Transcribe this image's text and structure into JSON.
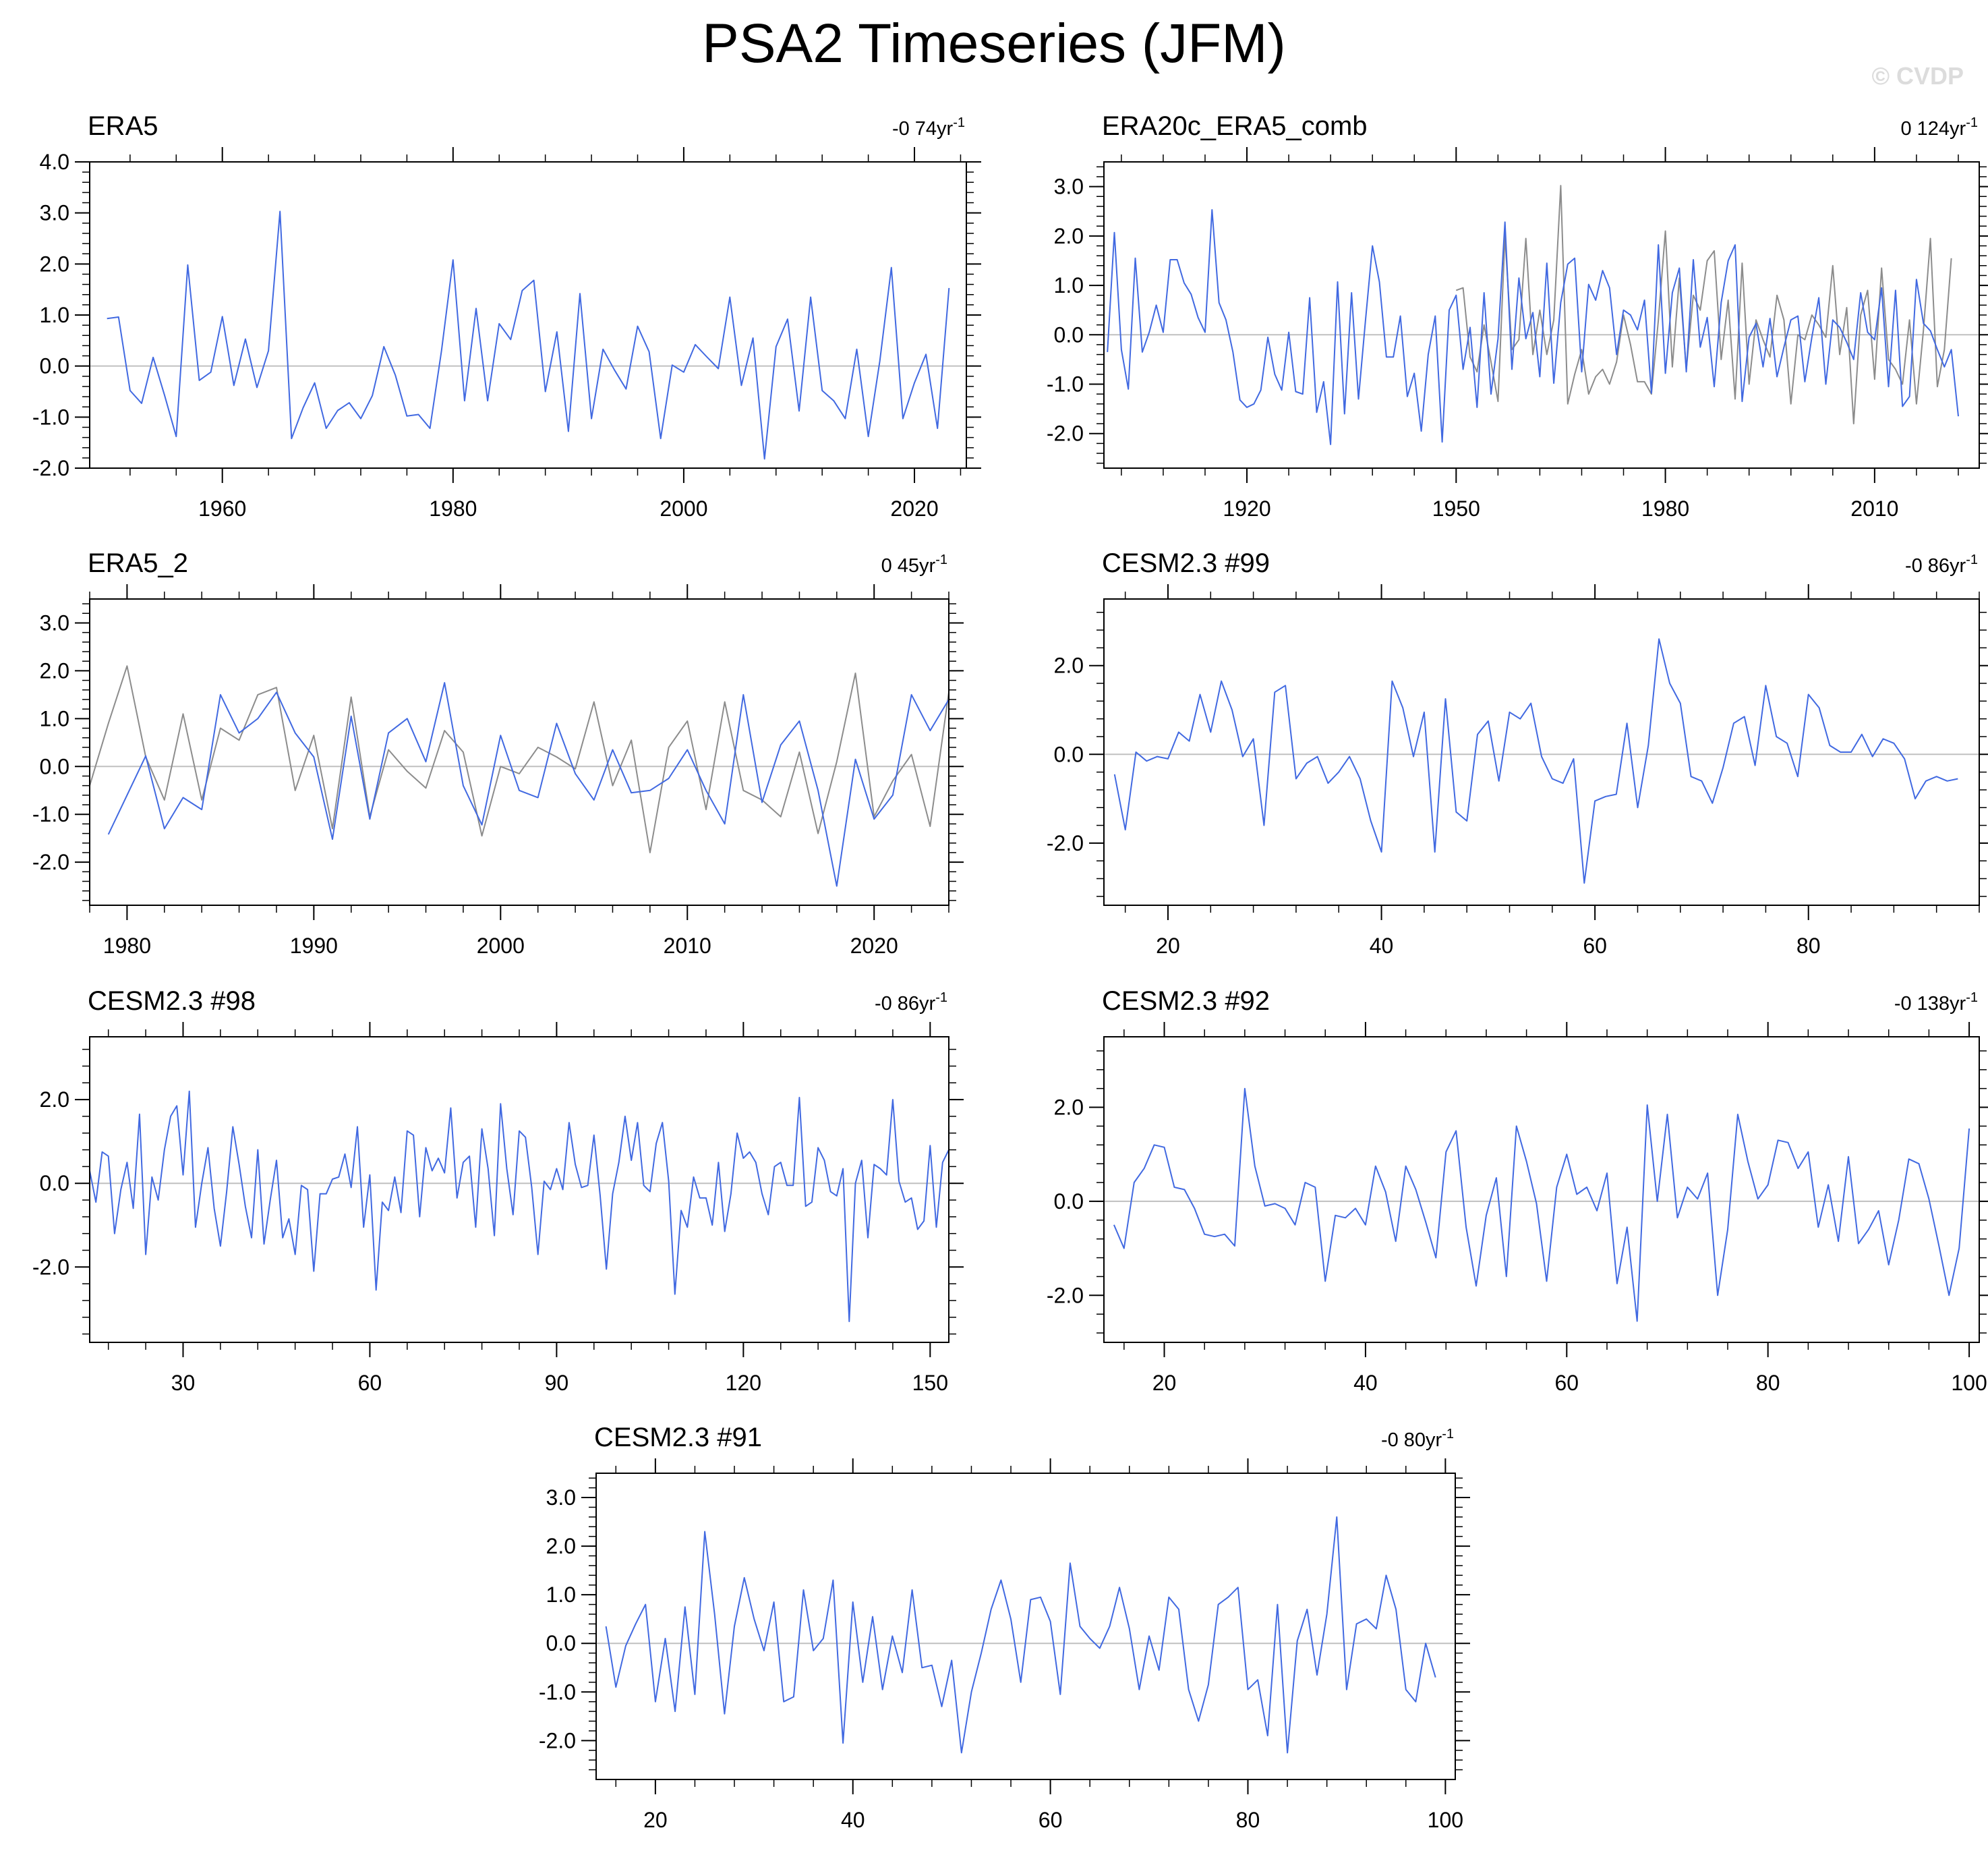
{
  "title": "PSA2 Timeseries (JFM)",
  "watermark": "© CVDP",
  "colors": {
    "primary": "#4169e1",
    "secondary": "#8c8c8c",
    "zero_line": "#c0c0c0",
    "frame": "#000000"
  },
  "chart_data": [
    {
      "type": "line",
      "panel_title": "ERA5",
      "trend": {
        "value": "-0 74yr",
        "exponent": "-1"
      },
      "xlim": [
        1948.5,
        2024.5
      ],
      "ylim": [
        -2.0,
        4.0
      ],
      "xticks": [
        1960,
        1980,
        2000,
        2020
      ],
      "xtick_labels": [
        "1960",
        "1980",
        "2000",
        "2020"
      ],
      "yticks": [
        -2,
        -1,
        0,
        1,
        2,
        3,
        4
      ],
      "ytick_labels": [
        "-2.0",
        "-1.0",
        "0.0",
        "1.0",
        "2.0",
        "3.0",
        "4.0"
      ],
      "series": [
        {
          "x0": 1950,
          "dx": 1,
          "values": [
            0.93,
            0.96,
            -0.48,
            -0.73,
            0.17,
            -0.58,
            -1.38,
            1.98,
            -0.28,
            -0.12,
            0.97,
            -0.38,
            0.53,
            -0.42,
            0.3,
            3.03,
            -1.42,
            -0.82,
            -0.33,
            -1.22,
            -0.87,
            -0.72,
            -1.03,
            -0.58,
            0.38,
            -0.18,
            -0.98,
            -0.95,
            -1.22,
            0.3,
            2.08,
            -0.68,
            1.13,
            -0.68,
            0.83,
            0.52,
            1.48,
            1.68,
            -0.5,
            0.67,
            -1.28,
            1.42,
            -1.03,
            0.33,
            -0.08,
            -0.45,
            0.78,
            0.28,
            -1.42,
            0.02,
            -0.12,
            0.42,
            0.18,
            -0.05,
            1.35,
            -0.38,
            0.55,
            -1.82,
            0.38,
            0.92,
            -0.88,
            1.35,
            -0.48,
            -0.68,
            -1.03,
            0.33,
            -1.38,
            0.1,
            1.93,
            -1.03,
            -0.33,
            0.23,
            -1.22,
            1.53
          ]
        }
      ]
    },
    {
      "type": "line",
      "panel_title": "ERA20c_ERA5_comb",
      "trend": {
        "value": "0 124yr",
        "exponent": "-1"
      },
      "xlim": [
        1899.5,
        2025
      ],
      "ylim": [
        -2.7,
        3.5
      ],
      "xticks": [
        1920,
        1950,
        1980,
        2010
      ],
      "xtick_labels": [
        "1920",
        "1950",
        "1980",
        "2010"
      ],
      "yticks": [
        -2,
        -1,
        0,
        1,
        2,
        3
      ],
      "ytick_labels": [
        "-2.0",
        "-1.0",
        "0.0",
        "1.0",
        "2.0",
        "3.0"
      ],
      "series": [
        {
          "x0": 1900,
          "dx": 1,
          "values": [
            -0.35,
            2.07,
            -0.3,
            -1.1,
            1.55,
            -0.35,
            0.05,
            0.6,
            0.05,
            1.52,
            1.52,
            1.05,
            0.82,
            0.35,
            0.05,
            2.53,
            0.65,
            0.3,
            -0.35,
            -1.32,
            -1.47,
            -1.4,
            -1.12,
            -0.05,
            -0.8,
            -1.12,
            0.05,
            -1.15,
            -1.2,
            0.75,
            -1.57,
            -0.95,
            -2.22,
            1.07,
            -1.6,
            0.85,
            -1.3,
            0.28,
            1.8,
            1.07,
            -0.45,
            -0.45,
            0.38,
            -1.25,
            -0.78,
            -1.95,
            -0.4,
            0.38,
            -2.17,
            0.5,
            0.8,
            -0.7,
            0.15,
            -1.47,
            0.85,
            -1.2,
            -0.08,
            2.28,
            -0.7,
            1.15,
            -0.08,
            0.45,
            -0.85,
            1.45,
            -0.98,
            0.65,
            1.43,
            1.55,
            -0.75,
            1.02,
            0.7,
            1.3,
            0.95,
            -0.4,
            0.5,
            0.4,
            0.1,
            0.7,
            -1.18,
            1.82,
            -0.78,
            0.85,
            1.35,
            -0.75,
            1.52,
            -0.25,
            0.35,
            -1.05,
            0.65,
            1.5,
            1.82,
            -1.35,
            -0.05,
            0.23,
            -0.65,
            0.33,
            -0.85,
            -0.25,
            0.3,
            0.38,
            -0.95,
            -0.05,
            0.75,
            -1.0,
            0.3,
            0.15,
            -0.15,
            -0.5,
            0.85,
            0.05,
            -0.1,
            0.95,
            -1.05,
            0.9,
            -1.45,
            -1.25,
            1.12,
            0.23,
            0.08,
            -0.3,
            -0.65,
            -0.3,
            -1.65
          ]
        },
        {
          "x0": 1950,
          "dx": 1,
          "values": [
            0.9,
            0.95,
            -0.45,
            -0.75,
            0.2,
            -0.55,
            -1.35,
            2.0,
            -0.3,
            -0.1,
            1.95,
            -0.4,
            0.5,
            -0.4,
            0.3,
            3.02,
            -1.4,
            -0.8,
            -0.3,
            -1.2,
            -0.85,
            -0.7,
            -1.0,
            -0.55,
            0.4,
            -0.2,
            -0.95,
            -0.95,
            -1.2,
            0.3,
            2.1,
            -0.65,
            1.15,
            -0.7,
            0.8,
            0.5,
            1.5,
            1.7,
            -0.5,
            0.7,
            -1.3,
            1.45,
            -1.0,
            0.3,
            -0.1,
            -0.45,
            0.8,
            0.3,
            -1.4,
            0.0,
            -0.1,
            0.4,
            0.2,
            -0.05,
            1.4,
            -0.4,
            0.55,
            -1.8,
            0.4,
            0.9,
            -0.9,
            1.35,
            -0.5,
            -0.7,
            -1.0,
            0.3,
            -1.4,
            0.1,
            1.95,
            -1.05,
            -0.3,
            1.55
          ]
        }
      ]
    },
    {
      "type": "line",
      "panel_title": "ERA5_2",
      "trend": {
        "value": "0 45yr",
        "exponent": "-1"
      },
      "xlim": [
        1978,
        2024
      ],
      "ylim": [
        -2.9,
        3.5
      ],
      "xticks": [
        1980,
        1990,
        2000,
        2010,
        2020
      ],
      "xtick_labels": [
        "1980",
        "1990",
        "2000",
        "2010",
        "2020"
      ],
      "yticks": [
        -2,
        -1,
        0,
        1,
        2,
        3
      ],
      "ytick_labels": [
        "-2.0",
        "-1.0",
        "0.0",
        "1.0",
        "2.0",
        "3.0"
      ],
      "series": [
        {
          "x0": 1979,
          "dx": 1,
          "values": [
            -1.42,
            -0.6,
            0.22,
            -1.3,
            -0.65,
            -0.9,
            1.5,
            0.7,
            1.0,
            1.55,
            0.7,
            0.2,
            -1.52,
            1.05,
            -1.1,
            0.7,
            1.0,
            0.1,
            1.75,
            -0.4,
            -1.22,
            0.65,
            -0.5,
            -0.65,
            0.9,
            -0.15,
            -0.7,
            0.35,
            -0.55,
            -0.5,
            -0.25,
            0.35,
            -0.5,
            -1.2,
            1.5,
            -0.75,
            0.45,
            0.95,
            -0.5,
            -2.5,
            0.15,
            -1.1,
            -0.6,
            1.5,
            0.75,
            1.4
          ]
        },
        {
          "x0": 1978,
          "dx": 1,
          "values": [
            -0.4,
            0.9,
            2.1,
            0.2,
            -0.7,
            1.1,
            -0.7,
            0.8,
            0.55,
            1.5,
            1.65,
            -0.5,
            0.65,
            -1.3,
            1.45,
            -1.05,
            0.35,
            -0.1,
            -0.45,
            0.75,
            0.3,
            -1.45,
            0.0,
            -0.15,
            0.4,
            0.2,
            -0.05,
            1.35,
            -0.4,
            0.55,
            -1.8,
            0.4,
            0.95,
            -0.9,
            1.35,
            -0.5,
            -0.7,
            -1.05,
            0.3,
            -1.4,
            0.1,
            1.95,
            -1.05,
            -0.3,
            0.25,
            -1.25,
            1.55
          ]
        }
      ]
    },
    {
      "type": "line",
      "panel_title": "CESM2.3 #99",
      "trend": {
        "value": "-0 86yr",
        "exponent": "-1"
      },
      "xlim": [
        14,
        96
      ],
      "ylim": [
        -3.4,
        3.5
      ],
      "xticks": [
        20,
        40,
        60,
        80
      ],
      "xtick_labels": [
        "20",
        "40",
        "60",
        "80"
      ],
      "yticks": [
        -2,
        0,
        2
      ],
      "ytick_labels": [
        "-2.0",
        "0.0",
        "2.0"
      ],
      "series": [
        {
          "x0": 15,
          "dx": 1,
          "values": [
            -0.45,
            -1.7,
            0.05,
            -0.15,
            -0.05,
            -0.1,
            0.5,
            0.3,
            1.35,
            0.5,
            1.65,
            1.0,
            -0.05,
            0.35,
            -1.6,
            1.4,
            1.55,
            -0.55,
            -0.2,
            -0.05,
            -0.65,
            -0.4,
            -0.05,
            -0.55,
            -1.5,
            -2.2,
            1.65,
            1.05,
            -0.05,
            0.95,
            -2.2,
            1.25,
            -1.3,
            -1.5,
            0.45,
            0.75,
            -0.6,
            0.95,
            0.8,
            1.15,
            -0.05,
            -0.55,
            -0.65,
            -0.1,
            -2.9,
            -1.05,
            -0.95,
            -0.9,
            0.7,
            -1.2,
            0.2,
            2.6,
            1.6,
            1.15,
            -0.5,
            -0.6,
            -1.1,
            -0.3,
            0.7,
            0.85,
            -0.25,
            1.55,
            0.4,
            0.25,
            -0.5,
            1.35,
            1.05,
            0.2,
            0.05,
            0.05,
            0.45,
            -0.05,
            0.35,
            0.25,
            -0.1,
            -1.0,
            -0.6,
            -0.5,
            -0.6,
            -0.55
          ]
        }
      ]
    },
    {
      "type": "line",
      "panel_title": "CESM2.3 #98",
      "trend": {
        "value": "-0 86yr",
        "exponent": "-1"
      },
      "xlim": [
        15,
        153
      ],
      "ylim": [
        -3.8,
        3.5
      ],
      "xticks": [
        30,
        60,
        90,
        120,
        150
      ],
      "xtick_labels": [
        "30",
        "60",
        "90",
        "120",
        "150"
      ],
      "yticks": [
        -2,
        0,
        2
      ],
      "ytick_labels": [
        "-2.0",
        "0.0",
        "2.0"
      ],
      "series": [
        {
          "x0": 15,
          "dx": 1,
          "values": [
            0.3,
            -0.45,
            0.75,
            0.65,
            -1.2,
            -0.15,
            0.5,
            -0.6,
            1.65,
            -1.7,
            0.15,
            -0.4,
            0.8,
            1.6,
            1.85,
            0.2,
            2.2,
            -1.05,
            0.0,
            0.85,
            -0.6,
            -1.5,
            -0.2,
            1.35,
            0.45,
            -0.55,
            -1.3,
            0.8,
            -1.45,
            -0.4,
            0.55,
            -1.3,
            -0.85,
            -1.7,
            -0.05,
            -0.15,
            -2.1,
            -0.25,
            -0.25,
            0.1,
            0.15,
            0.7,
            -0.1,
            1.35,
            -1.05,
            0.2,
            -2.55,
            -0.45,
            -0.65,
            0.15,
            -0.7,
            1.25,
            1.15,
            -0.8,
            0.85,
            0.3,
            0.6,
            0.25,
            1.8,
            -0.35,
            0.5,
            0.65,
            -1.05,
            1.3,
            0.35,
            -1.25,
            1.9,
            0.35,
            -0.75,
            1.25,
            1.1,
            -0.1,
            -1.7,
            0.05,
            -0.15,
            0.35,
            -0.15,
            1.45,
            0.45,
            -0.1,
            -0.05,
            1.15,
            -0.3,
            -2.05,
            -0.25,
            0.5,
            1.6,
            0.55,
            1.45,
            -0.05,
            -0.2,
            0.95,
            1.45,
            0.05,
            -2.65,
            -0.65,
            -1.05,
            0.15,
            -0.35,
            -0.35,
            -1.0,
            0.5,
            -1.15,
            -0.25,
            1.2,
            0.6,
            0.75,
            0.5,
            -0.25,
            -0.75,
            0.4,
            0.5,
            -0.05,
            -0.05,
            2.05,
            -0.55,
            -0.45,
            0.85,
            0.55,
            -0.2,
            -0.3,
            0.35,
            -3.3,
            0.0,
            0.55,
            -1.3,
            0.45,
            0.35,
            0.2,
            2.0,
            0.05,
            -0.45,
            -0.35,
            -1.1,
            -0.9,
            0.9,
            -1.05,
            0.5,
            0.8,
            -0.2,
            -0.7
          ]
        }
      ]
    },
    {
      "type": "line",
      "panel_title": "CESM2.3 #92",
      "trend": {
        "value": "-0 138yr",
        "exponent": "-1"
      },
      "xlim": [
        14,
        101
      ],
      "ylim": [
        -3.0,
        3.5
      ],
      "xticks": [
        20,
        40,
        60,
        80,
        100
      ],
      "xtick_labels": [
        "20",
        "40",
        "60",
        "80",
        "100"
      ],
      "yticks": [
        -2,
        0,
        2
      ],
      "ytick_labels": [
        "-2.0",
        "0.0",
        "2.0"
      ],
      "series": [
        {
          "x0": 15,
          "dx": 1,
          "values": [
            -0.5,
            -1.0,
            0.4,
            0.7,
            1.2,
            1.15,
            0.3,
            0.25,
            -0.15,
            -0.7,
            -0.75,
            -0.7,
            -0.95,
            2.4,
            0.75,
            -0.1,
            -0.05,
            -0.15,
            -0.5,
            0.4,
            0.3,
            -1.7,
            -0.3,
            -0.35,
            -0.15,
            -0.5,
            0.75,
            0.2,
            -0.85,
            0.75,
            0.25,
            -0.45,
            -1.2,
            1.05,
            1.5,
            -0.55,
            -1.8,
            -0.3,
            0.5,
            -1.6,
            1.6,
            0.85,
            -0.05,
            -1.7,
            0.3,
            1.0,
            0.15,
            0.3,
            -0.2,
            0.6,
            -1.75,
            -0.55,
            -2.55,
            2.05,
            0.0,
            1.85,
            -0.35,
            0.3,
            0.05,
            0.6,
            -2.0,
            -0.6,
            1.85,
            0.85,
            0.05,
            0.35,
            1.3,
            1.25,
            0.7,
            1.05,
            -0.55,
            0.35,
            -0.85,
            0.95,
            -0.9,
            -0.6,
            -0.2,
            -1.35,
            -0.4,
            0.9,
            0.8,
            0.05,
            -0.95,
            -2.0,
            -1.0,
            1.55
          ]
        }
      ]
    },
    {
      "type": "line",
      "panel_title": "CESM2.3 #91",
      "trend": {
        "value": "-0 80yr",
        "exponent": "-1"
      },
      "xlim": [
        14,
        101
      ],
      "ylim": [
        -2.8,
        3.5
      ],
      "xticks": [
        20,
        40,
        60,
        80,
        100
      ],
      "xtick_labels": [
        "20",
        "40",
        "60",
        "80",
        "100"
      ],
      "yticks": [
        -2,
        -1,
        0,
        1,
        2,
        3
      ],
      "ytick_labels": [
        "-2.0",
        "-1.0",
        "0.0",
        "1.0",
        "2.0",
        "3.0"
      ],
      "series": [
        {
          "x0": 15,
          "dx": 1,
          "values": [
            0.35,
            -0.9,
            -0.05,
            0.4,
            0.8,
            -1.2,
            0.1,
            -1.4,
            0.75,
            -1.05,
            2.3,
            0.6,
            -1.45,
            0.35,
            1.35,
            0.5,
            -0.15,
            0.85,
            -1.2,
            -1.1,
            1.1,
            -0.15,
            0.1,
            1.3,
            -2.05,
            0.85,
            -0.8,
            0.55,
            -0.95,
            0.15,
            -0.6,
            1.1,
            -0.5,
            -0.45,
            -1.3,
            -0.35,
            -2.25,
            -1.0,
            -0.2,
            0.7,
            1.3,
            0.5,
            -0.8,
            0.9,
            0.95,
            0.45,
            -1.05,
            1.65,
            0.35,
            0.1,
            -0.1,
            0.35,
            1.15,
            0.3,
            -0.95,
            0.15,
            -0.55,
            0.95,
            0.7,
            -0.95,
            -1.6,
            -0.85,
            0.8,
            0.95,
            1.15,
            -0.95,
            -0.75,
            -1.9,
            0.8,
            -2.25,
            0.05,
            0.7,
            -0.65,
            0.6,
            2.6,
            -0.95,
            0.4,
            0.5,
            0.3,
            1.4,
            0.7,
            -0.95,
            -1.2,
            0.0,
            -0.7
          ]
        }
      ]
    }
  ]
}
